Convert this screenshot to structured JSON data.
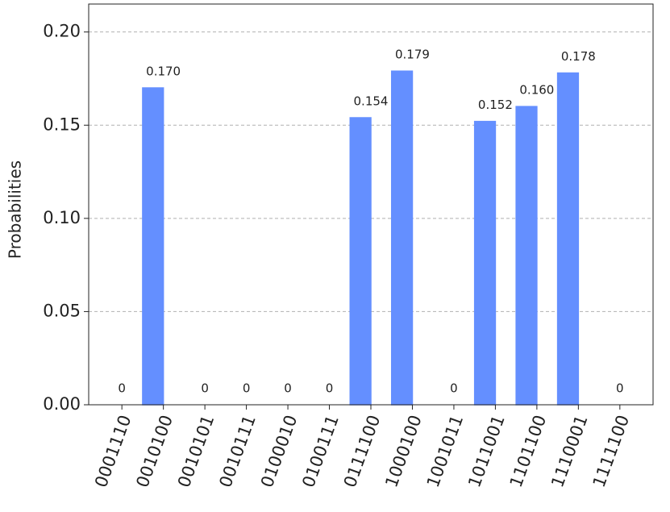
{
  "chart_data": {
    "type": "bar",
    "y_label": "Probabilities",
    "categories": [
      "0001110",
      "0010100",
      "0010101",
      "0010111",
      "0100010",
      "0100111",
      "0111100",
      "1000100",
      "1001011",
      "1011001",
      "1101100",
      "1110001",
      "1111100"
    ],
    "values": [
      0,
      0.17,
      0,
      0,
      0,
      0,
      0.154,
      0.179,
      0,
      0.152,
      0.16,
      0.178,
      0
    ],
    "value_labels": [
      "0",
      "0.170",
      "0",
      "0",
      "0",
      "0",
      "0.154",
      "0.179",
      "0",
      "0.152",
      "0.160",
      "0.178",
      "0"
    ],
    "color": "#648fff",
    "ylim": [
      0,
      0.215
    ],
    "yticks": [
      {
        "value": 0,
        "label": "0.00"
      },
      {
        "value": 0.05,
        "label": "0.05"
      },
      {
        "value": 0.1,
        "label": "0.10"
      },
      {
        "value": 0.15,
        "label": "0.15"
      },
      {
        "value": 0.2,
        "label": "0.20"
      }
    ],
    "grid": true
  }
}
